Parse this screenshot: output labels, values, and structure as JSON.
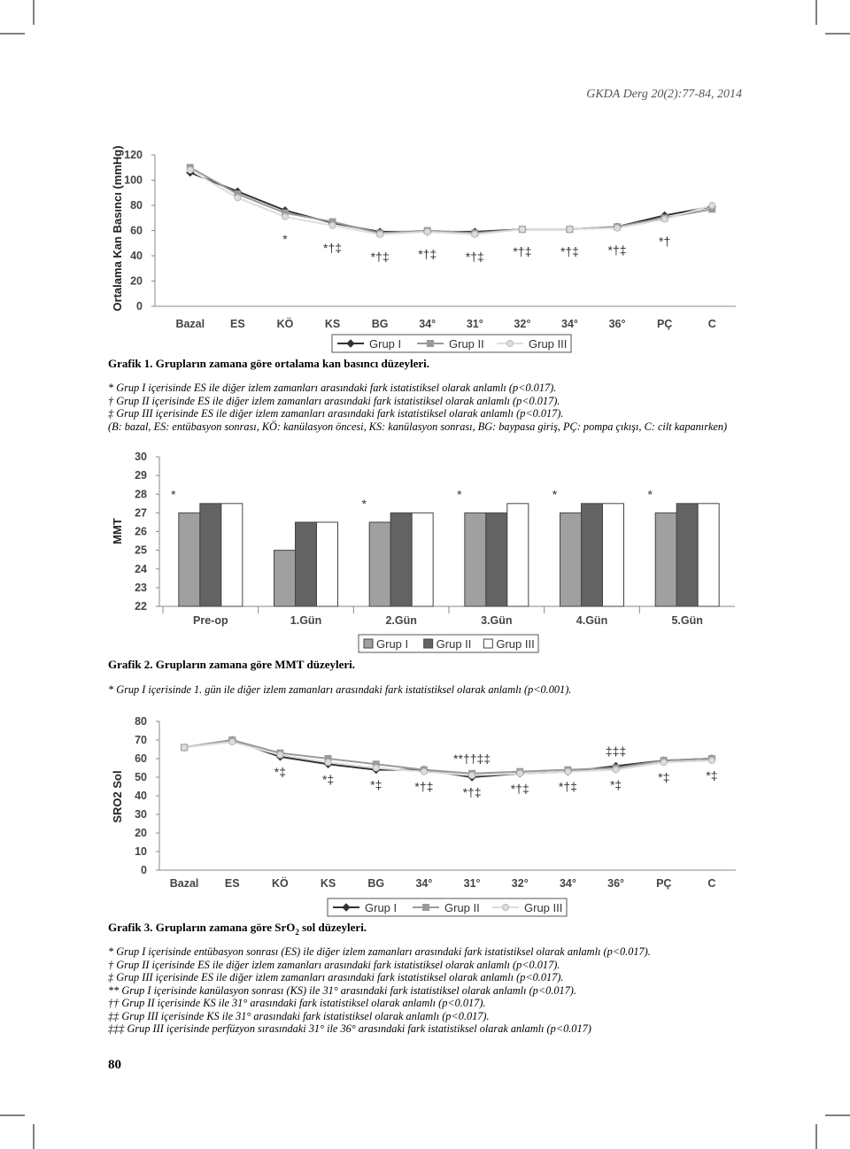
{
  "header": "GKDA Derg 20(2):77-84, 2014",
  "chart_data": [
    {
      "type": "line",
      "y_label": "Ortalama Kan Basıncı (mmHg)",
      "categories": [
        "Bazal",
        "ES",
        "KÖ",
        "KS",
        "BG",
        "34°",
        "31°",
        "32°",
        "34°",
        "36°",
        "PÇ",
        "C"
      ],
      "ylim": [
        0,
        120
      ],
      "yticks": [
        0,
        20,
        40,
        60,
        80,
        100,
        120
      ],
      "series": [
        {
          "name": "Grup I",
          "color": "#333333",
          "marker": "diamond",
          "values": [
            106,
            91,
            76,
            66,
            59,
            59,
            59,
            61,
            61,
            63,
            72,
            79
          ]
        },
        {
          "name": "Grup II",
          "color": "#9a9a9a",
          "marker": "square",
          "values": [
            110,
            89,
            74,
            67,
            58,
            60,
            58,
            61,
            61,
            63,
            70,
            77
          ]
        },
        {
          "name": "Grup III",
          "color": "#dddddd",
          "marker": "circle",
          "values": [
            108,
            86,
            71,
            64,
            57,
            59,
            57,
            61,
            61,
            62,
            69,
            80
          ]
        }
      ],
      "annotations": [
        null,
        null,
        "*",
        "*†‡",
        "*†‡",
        "*†‡",
        "*†‡",
        "*†‡",
        "*†‡",
        "*†‡",
        "*†",
        null
      ]
    },
    {
      "type": "bar",
      "y_label": "MMT",
      "categories": [
        "Pre-op",
        "1.Gün",
        "2.Gün",
        "3.Gün",
        "4.Gün",
        "5.Gün"
      ],
      "ylim": [
        22,
        30
      ],
      "yticks": [
        22,
        23,
        24,
        25,
        26,
        27,
        28,
        29,
        30
      ],
      "series": [
        {
          "name": "Grup I",
          "color": "#a0a0a0",
          "values": [
            27,
            25,
            26.5,
            27,
            27,
            27
          ]
        },
        {
          "name": "Grup II",
          "color": "#636363",
          "values": [
            27.5,
            26.5,
            27,
            27,
            27.5,
            27.5
          ]
        },
        {
          "name": "Grup III",
          "color": "#ffffff",
          "values": [
            27.5,
            26.5,
            27,
            27.5,
            27.5,
            27.5
          ]
        }
      ],
      "annotations": [
        "*",
        null,
        "*",
        "*",
        "*",
        "*"
      ]
    },
    {
      "type": "line",
      "y_label": "SRO2 Sol",
      "categories": [
        "Bazal",
        "ES",
        "KÖ",
        "KS",
        "BG",
        "34°",
        "31°",
        "32°",
        "34°",
        "36°",
        "PÇ",
        "C"
      ],
      "ylim": [
        0,
        80
      ],
      "yticks": [
        0,
        10,
        20,
        30,
        40,
        50,
        60,
        70,
        80
      ],
      "series": [
        {
          "name": "Grup I",
          "color": "#333333",
          "marker": "diamond",
          "values": [
            66,
            70,
            61,
            57,
            54,
            54,
            50,
            52,
            53,
            56,
            59,
            60
          ]
        },
        {
          "name": "Grup II",
          "color": "#9a9a9a",
          "marker": "square",
          "values": [
            66,
            70,
            63,
            60,
            57,
            54,
            52,
            53,
            54,
            55,
            59,
            60
          ]
        },
        {
          "name": "Grup III",
          "color": "#dddddd",
          "marker": "circle",
          "values": [
            66,
            69,
            62,
            58,
            55,
            53,
            51,
            52,
            53,
            54,
            58,
            59
          ]
        }
      ],
      "annotations": [
        null,
        null,
        "*‡",
        "*‡",
        "*‡",
        "*†‡",
        "*†‡",
        "*†‡",
        "*†‡",
        "*‡",
        "*‡",
        "*‡"
      ],
      "annotations_top": [
        null,
        null,
        null,
        null,
        null,
        null,
        "**††‡‡",
        null,
        null,
        "‡‡‡",
        null,
        null
      ]
    }
  ],
  "figures": [
    {
      "caption": "Grafik 1. Grupların zamana göre ortalama kan basıncı düzeyleri.",
      "notes": [
        "* Grup I içerisinde ES ile diğer izlem zamanları arasındaki fark istatistiksel olarak anlamlı (p<0.017).",
        "† Grup II içerisinde ES ile diğer izlem zamanları arasındaki fark istatistiksel olarak anlamlı (p<0.017).",
        "‡ Grup III içerisinde ES ile diğer izlem zamanları arasındaki fark istatistiksel olarak anlamlı (p<0.017).",
        "(B: bazal, ES: entübasyon sonrası, KÖ: kanülasyon öncesi, KS: kanülasyon sonrası, BG: baypasa giriş, PÇ: pompa çıkışı, C: cilt kapanırken)"
      ]
    },
    {
      "caption": "Grafik 2. Grupların zamana göre MMT düzeyleri.",
      "notes": [
        "* Grup I içerisinde 1. gün ile diğer izlem zamanları arasındaki fark istatistiksel olarak anlamlı (p<0.001)."
      ]
    },
    {
      "caption": [
        "Grafik 3. Grupların zamana göre SrO",
        "2",
        " sol düzeyleri."
      ],
      "notes": [
        "* Grup I içerisinde entübasyon sonrası (ES) ile diğer izlem zamanları arasındaki fark istatistiksel olarak anlamlı (p<0.017).",
        "† Grup II içerisinde ES ile diğer izlem zamanları arasındaki fark istatistiksel olarak anlamlı (p<0.017).",
        "‡ Grup III içerisinde ES ile diğer izlem zamanları arasındaki fark istatistiksel olarak anlamlı (p<0.017).",
        "** Grup I içerisinde kanülasyon sonrası (KS) ile 31° arasındaki fark istatistiksel olarak anlamlı (p<0.017).",
        "†† Grup II içerisinde KS ile 31° arasındaki fark istatistiksel olarak anlamlı (p<0.017).",
        "‡‡ Grup III içerisinde KS ile 31° arasındaki fark istatistiksel olarak anlamlı (p<0.017).",
        "‡‡‡ Grup III içerisinde perfüzyon sırasındaki 31° ile 36° arasındaki fark istatistiksel olarak anlamlı (p<0.017)"
      ]
    }
  ],
  "page_number": "80"
}
